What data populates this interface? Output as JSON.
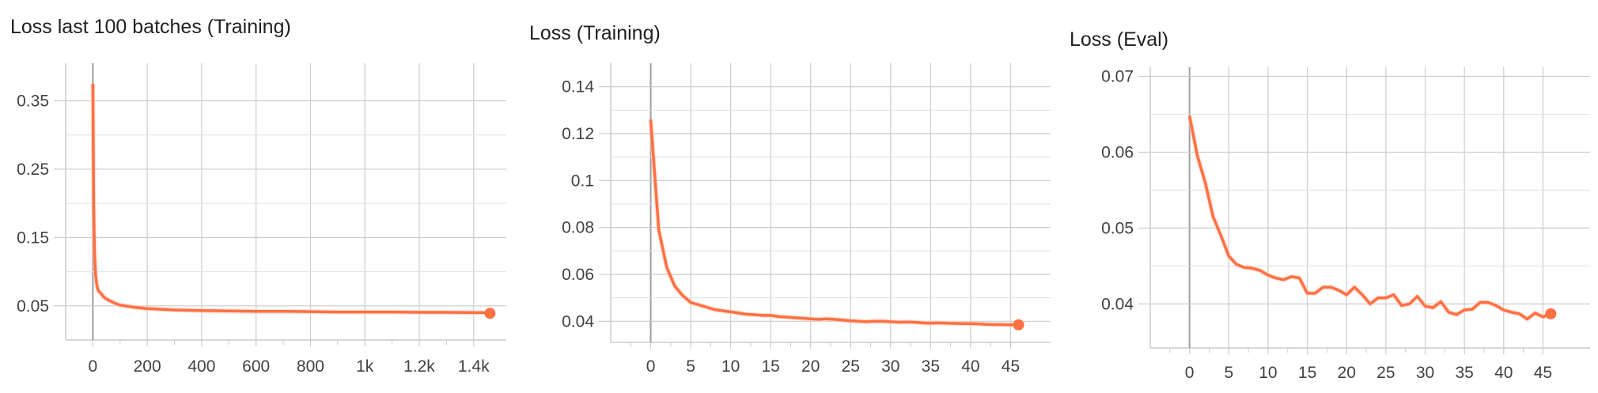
{
  "colors": {
    "line": "#ff7043",
    "line_raw": "#ffccbc",
    "grid": "#cccccc",
    "axis": "#9e9e9e",
    "text": "#424242"
  },
  "chart_data": [
    {
      "type": "line",
      "title": "Loss last 100 batches (Training)",
      "xlabel": "",
      "ylabel": "",
      "xlim": [
        -100,
        1520
      ],
      "ylim": [
        0.0,
        0.405
      ],
      "xticks": [
        0,
        200,
        400,
        600,
        800,
        1000,
        1200,
        1400
      ],
      "xtick_labels": [
        "0",
        "200",
        "400",
        "600",
        "800",
        "1k",
        "1.2k",
        "1.4k"
      ],
      "yticks": [
        0.05,
        0.15,
        0.25,
        0.35
      ],
      "ytick_labels": [
        "0.05",
        "0.15",
        "0.25",
        "0.35"
      ],
      "grid": true,
      "series": [
        {
          "name": "",
          "x": [
            0,
            3,
            6,
            10,
            15,
            20,
            30,
            40,
            50,
            60,
            80,
            100,
            120,
            150,
            200,
            250,
            300,
            400,
            500,
            600,
            700,
            800,
            900,
            1000,
            1100,
            1200,
            1300,
            1400,
            1450,
            1460
          ],
          "y": [
            0.375,
            0.2,
            0.13,
            0.095,
            0.08,
            0.072,
            0.068,
            0.063,
            0.06,
            0.058,
            0.054,
            0.051,
            0.05,
            0.048,
            0.046,
            0.045,
            0.044,
            0.043,
            0.0425,
            0.042,
            0.042,
            0.0415,
            0.041,
            0.041,
            0.041,
            0.0405,
            0.0405,
            0.04,
            0.04,
            0.039
          ]
        }
      ]
    },
    {
      "type": "line",
      "title": "Loss (Training)",
      "xlabel": "",
      "ylabel": "",
      "xlim": [
        -5,
        50
      ],
      "ylim": [
        0.031,
        0.15
      ],
      "xticks": [
        0,
        5,
        10,
        15,
        20,
        25,
        30,
        35,
        40,
        45
      ],
      "xtick_labels": [
        "0",
        "5",
        "10",
        "15",
        "20",
        "25",
        "30",
        "35",
        "40",
        "45"
      ],
      "yticks": [
        0.04,
        0.06,
        0.08,
        0.1,
        0.12,
        0.14
      ],
      "ytick_labels": [
        "0.04",
        "0.06",
        "0.08",
        "0.1",
        "0.12",
        "0.14"
      ],
      "grid": true,
      "series": [
        {
          "name": "",
          "x": [
            0,
            1,
            2,
            3,
            4,
            5,
            6,
            7,
            8,
            9,
            10,
            11,
            12,
            13,
            14,
            15,
            16,
            17,
            18,
            19,
            20,
            21,
            22,
            23,
            24,
            25,
            26,
            27,
            28,
            29,
            30,
            31,
            32,
            33,
            34,
            35,
            36,
            37,
            38,
            39,
            40,
            41,
            42,
            43,
            44,
            45,
            46
          ],
          "y": [
            0.126,
            0.079,
            0.063,
            0.055,
            0.051,
            0.048,
            0.047,
            0.046,
            0.045,
            0.0445,
            0.044,
            0.0435,
            0.043,
            0.0428,
            0.0425,
            0.0425,
            0.042,
            0.0418,
            0.0415,
            0.0413,
            0.041,
            0.0408,
            0.041,
            0.0408,
            0.0405,
            0.0402,
            0.04,
            0.0398,
            0.04,
            0.04,
            0.0398,
            0.0396,
            0.0397,
            0.0396,
            0.0393,
            0.0392,
            0.0393,
            0.0392,
            0.0391,
            0.039,
            0.039,
            0.0389,
            0.0387,
            0.0386,
            0.0386,
            0.0385,
            0.0385
          ]
        }
      ]
    },
    {
      "type": "line",
      "title": "Loss (Eval)",
      "xlabel": "",
      "ylabel": "",
      "xlim": [
        -5,
        51
      ],
      "ylim": [
        0.0342,
        0.0712
      ],
      "xticks": [
        0,
        5,
        10,
        15,
        20,
        25,
        30,
        35,
        40,
        45
      ],
      "xtick_labels": [
        "0",
        "5",
        "10",
        "15",
        "20",
        "25",
        "30",
        "35",
        "40",
        "45"
      ],
      "yticks": [
        0.04,
        0.05,
        0.06,
        0.07
      ],
      "ytick_labels": [
        "0.04",
        "0.05",
        "0.06",
        "0.07"
      ],
      "grid": true,
      "series": [
        {
          "name": "",
          "x": [
            0,
            1,
            2,
            3,
            4,
            5,
            6,
            7,
            8,
            9,
            10,
            11,
            12,
            13,
            14,
            15,
            16,
            17,
            18,
            19,
            20,
            21,
            22,
            23,
            24,
            25,
            26,
            27,
            28,
            29,
            30,
            31,
            32,
            33,
            34,
            35,
            36,
            37,
            38,
            39,
            40,
            41,
            42,
            43,
            44,
            45,
            46
          ],
          "y": [
            0.0648,
            0.0595,
            0.056,
            0.0515,
            0.049,
            0.0463,
            0.0452,
            0.0448,
            0.0447,
            0.0444,
            0.0438,
            0.0434,
            0.0432,
            0.0436,
            0.0434,
            0.0414,
            0.0414,
            0.0422,
            0.0422,
            0.0418,
            0.0412,
            0.0422,
            0.0412,
            0.04,
            0.0408,
            0.0408,
            0.0412,
            0.0398,
            0.04,
            0.041,
            0.0397,
            0.0395,
            0.0403,
            0.0389,
            0.0386,
            0.0392,
            0.0393,
            0.0402,
            0.0402,
            0.0398,
            0.0392,
            0.0389,
            0.0387,
            0.038,
            0.0388,
            0.0383,
            0.0387
          ]
        }
      ]
    }
  ]
}
